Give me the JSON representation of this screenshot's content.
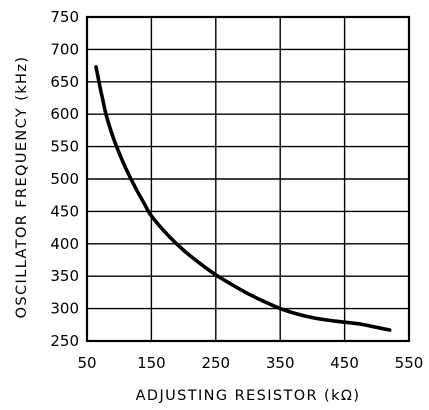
{
  "chart_data": {
    "type": "line",
    "title": "",
    "xlabel": "ADJUSTING RESISTOR (kΩ)",
    "ylabel": "OSCILLATOR FREQUENCY (kHz)",
    "xlim": [
      50,
      550
    ],
    "ylim": [
      250,
      750
    ],
    "xticks": [
      "50",
      "150",
      "250",
      "350",
      "450",
      "550"
    ],
    "yticks": [
      "250",
      "300",
      "350",
      "400",
      "450",
      "500",
      "550",
      "600",
      "650",
      "700",
      "750"
    ],
    "grid": true,
    "legend": "none",
    "series": [
      {
        "color": "#000000",
        "x": [
          64,
          70,
          75,
          80,
          90,
          100,
          110,
          125,
          140,
          150,
          175,
          200,
          225,
          250,
          275,
          300,
          325,
          350,
          375,
          400,
          425,
          450,
          475,
          500,
          520
        ],
        "y": [
          673,
          643,
          620,
          598,
          566,
          540,
          517,
          487,
          460,
          443,
          414,
          390,
          370,
          352,
          337,
          323,
          311,
          300,
          292,
          286,
          282,
          279,
          276,
          271,
          267
        ]
      }
    ]
  }
}
